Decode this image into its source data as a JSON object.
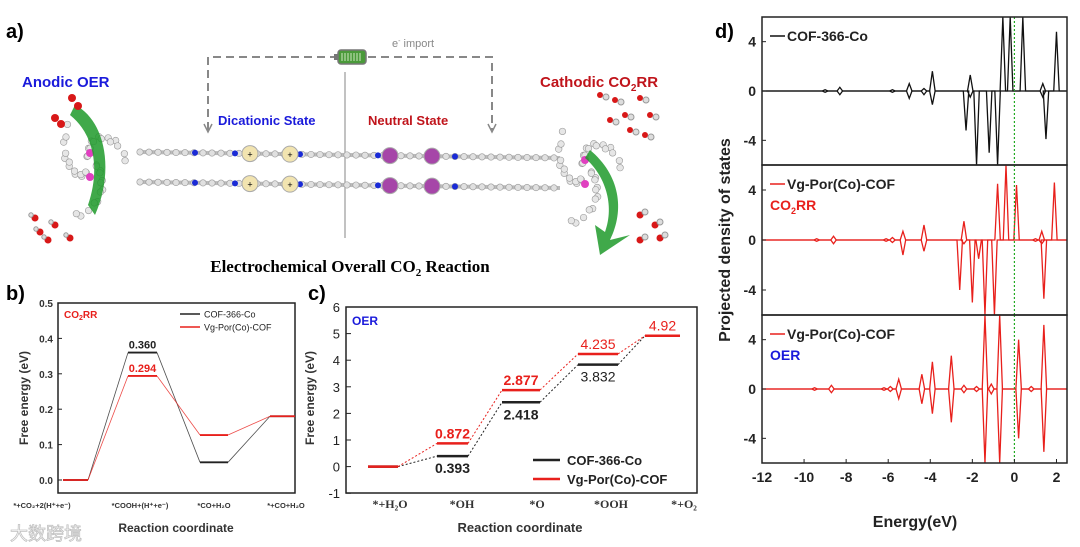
{
  "panel_a": {
    "label": "a)",
    "anodic": "Anodic OER",
    "cathodic_pre": "Cathodic CO",
    "cathodic_sub": "2",
    "cathodic_post": "RR",
    "e_import_pre": "e",
    "e_import_sup": "-",
    "e_import_post": " import",
    "dicationic": "Dicationic State",
    "neutral": "Neutral State",
    "title_pre": "Electrochemical Overall CO",
    "title_sub": "2",
    "title_post": " Reaction",
    "colors": {
      "anodic": "#1a1adb",
      "cathodic": "#c0141b",
      "arrow": "#1e9a2a",
      "metal": "#e040c0",
      "nitrogen": "#1a2bd6",
      "oxygen": "#d81818"
    }
  },
  "watermark": "大数跨境",
  "chart_data": [
    {
      "id": "b",
      "type": "line",
      "panel_label": "b)",
      "tag_pre": "CO",
      "tag_sub": "2",
      "tag_post": "RR",
      "xlabel": "Reaction coordinate",
      "ylabel": "Free energy (eV)",
      "ylim": [
        -0.05,
        0.5
      ],
      "yticks": [
        "0.0",
        "0.1",
        "0.2",
        "0.3",
        "0.4",
        "0.5"
      ],
      "categories": [
        "*+CO₂+2(H⁺+e⁻)",
        "*COOH+(H⁺+e⁻)",
        "*CO+H₂O",
        "*+CO+H₂O"
      ],
      "legend": "top-right",
      "series": [
        {
          "name": "COF-366-Co",
          "color": "#222222",
          "values": [
            0,
            0.36,
            0.05,
            0.18
          ],
          "labels": {
            "1": "0.360"
          }
        },
        {
          "name": "Vg-Por(Co)-COF",
          "color": "#e8201c",
          "values": [
            0,
            0.294,
            0.127,
            0.18
          ],
          "labels": {
            "1": "0.294"
          }
        }
      ]
    },
    {
      "id": "c",
      "type": "line",
      "panel_label": "c)",
      "tag": "OER",
      "xlabel": "Reaction coordinate",
      "ylabel": "Free energy (eV)",
      "ylim": [
        -1,
        6
      ],
      "yticks": [
        "-1",
        "0",
        "1",
        "2",
        "3",
        "4",
        "5",
        "6"
      ],
      "categories": [
        "*+H₂O",
        "*OH",
        "*O",
        "*OOH",
        "*+O₂"
      ],
      "legend": "bottom-right",
      "series": [
        {
          "name": "COF-366-Co",
          "color": "#222222",
          "values": [
            0,
            0.393,
            2.418,
            3.832,
            4.92
          ],
          "labels": [
            "",
            "0.393",
            "2.418",
            "3.832",
            ""
          ]
        },
        {
          "name": "Vg-Por(Co)-COF",
          "color": "#e8201c",
          "values": [
            0,
            0.872,
            2.877,
            4.235,
            4.92
          ],
          "labels": [
            "",
            "0.872",
            "2.877",
            "4.235",
            "4.92"
          ]
        }
      ]
    },
    {
      "id": "d",
      "type": "line",
      "panel_label": "d)",
      "xlabel": "Energy(eV)",
      "ylabel": "Projected density of states",
      "xlim": [
        -12,
        2.5
      ],
      "ylim": [
        -6,
        6
      ],
      "xticks": [
        "-12",
        "-10",
        "-8",
        "-6",
        "-4",
        "-2",
        "0",
        "2"
      ],
      "yticks": [
        "4",
        "0",
        "-4"
      ],
      "fermi_level": 0,
      "fermi_color": "#22aa22",
      "panels": [
        {
          "legend": "COF-366-Co",
          "color": "#111111",
          "tag": "",
          "peaks": [
            [
              -9.0,
              0.1,
              -0.1
            ],
            [
              -8.3,
              0.3,
              -0.3
            ],
            [
              -5.8,
              0.1,
              -0.1
            ],
            [
              -5.0,
              0.6,
              -0.6
            ],
            [
              -4.3,
              0.2,
              -0.3
            ],
            [
              -3.9,
              1.6,
              -1.1
            ],
            [
              -2.1,
              1.3,
              -0.5
            ],
            [
              -2.3,
              0,
              -3.2
            ],
            [
              -1.8,
              0,
              -6
            ],
            [
              -1.2,
              0,
              -5
            ],
            [
              -0.8,
              0,
              -6
            ],
            [
              -0.55,
              6,
              0
            ],
            [
              -0.2,
              6,
              0
            ],
            [
              0.4,
              6,
              0
            ],
            [
              1.35,
              0.6,
              -0.5
            ],
            [
              1.5,
              0,
              -3.9
            ],
            [
              2.0,
              4.8,
              0
            ]
          ]
        },
        {
          "legend": "Vg-Por(Co)-COF",
          "color": "#e8201c",
          "tag_pre": "CO",
          "tag_sub": "2",
          "tag_post": "RR",
          "tag_color": "#e8201c",
          "peaks": [
            [
              -9.4,
              0.1,
              -0.1
            ],
            [
              -8.6,
              0.3,
              -0.3
            ],
            [
              -6.1,
              0.1,
              -0.1
            ],
            [
              -5.8,
              0.2,
              -0.2
            ],
            [
              -5.3,
              0.7,
              -1.2
            ],
            [
              -4.3,
              1.2,
              -0.9
            ],
            [
              -2.4,
              1.5,
              -0.3
            ],
            [
              -2.6,
              0,
              -4
            ],
            [
              -2.0,
              0,
              -5
            ],
            [
              -1.7,
              0,
              -1.5
            ],
            [
              -1.4,
              0,
              -6
            ],
            [
              -0.95,
              0,
              -6
            ],
            [
              -0.8,
              4.5,
              0
            ],
            [
              -0.4,
              6,
              0
            ],
            [
              0.1,
              4.4,
              0
            ],
            [
              1.0,
              0.1,
              -0.1
            ],
            [
              1.3,
              0.7,
              -0.3
            ],
            [
              1.4,
              0,
              -4.7
            ],
            [
              1.9,
              4.6,
              0
            ]
          ]
        },
        {
          "legend": "Vg-Por(Co)-COF",
          "color": "#e8201c",
          "tag": "OER",
          "tag_color": "#1a1adb",
          "peaks": [
            [
              -9.5,
              0.1,
              -0.1
            ],
            [
              -8.7,
              0.3,
              -0.3
            ],
            [
              -6.2,
              0.1,
              -0.1
            ],
            [
              -5.9,
              0.2,
              -0.2
            ],
            [
              -5.5,
              0.8,
              -0.8
            ],
            [
              -4.4,
              1.2,
              -1.2
            ],
            [
              -3.9,
              2.2,
              -2.0
            ],
            [
              -3.0,
              2.7,
              -2.7
            ],
            [
              -2.4,
              0.3,
              -0.3
            ],
            [
              -1.8,
              0.2,
              -0.2
            ],
            [
              -1.4,
              6,
              -6
            ],
            [
              -1.1,
              0.4,
              -0.4
            ],
            [
              -0.7,
              6,
              -6
            ],
            [
              0.2,
              4.0,
              -4.0
            ],
            [
              0.8,
              0.2,
              -0.2
            ],
            [
              1.4,
              5.2,
              -5.1
            ]
          ]
        }
      ]
    }
  ]
}
